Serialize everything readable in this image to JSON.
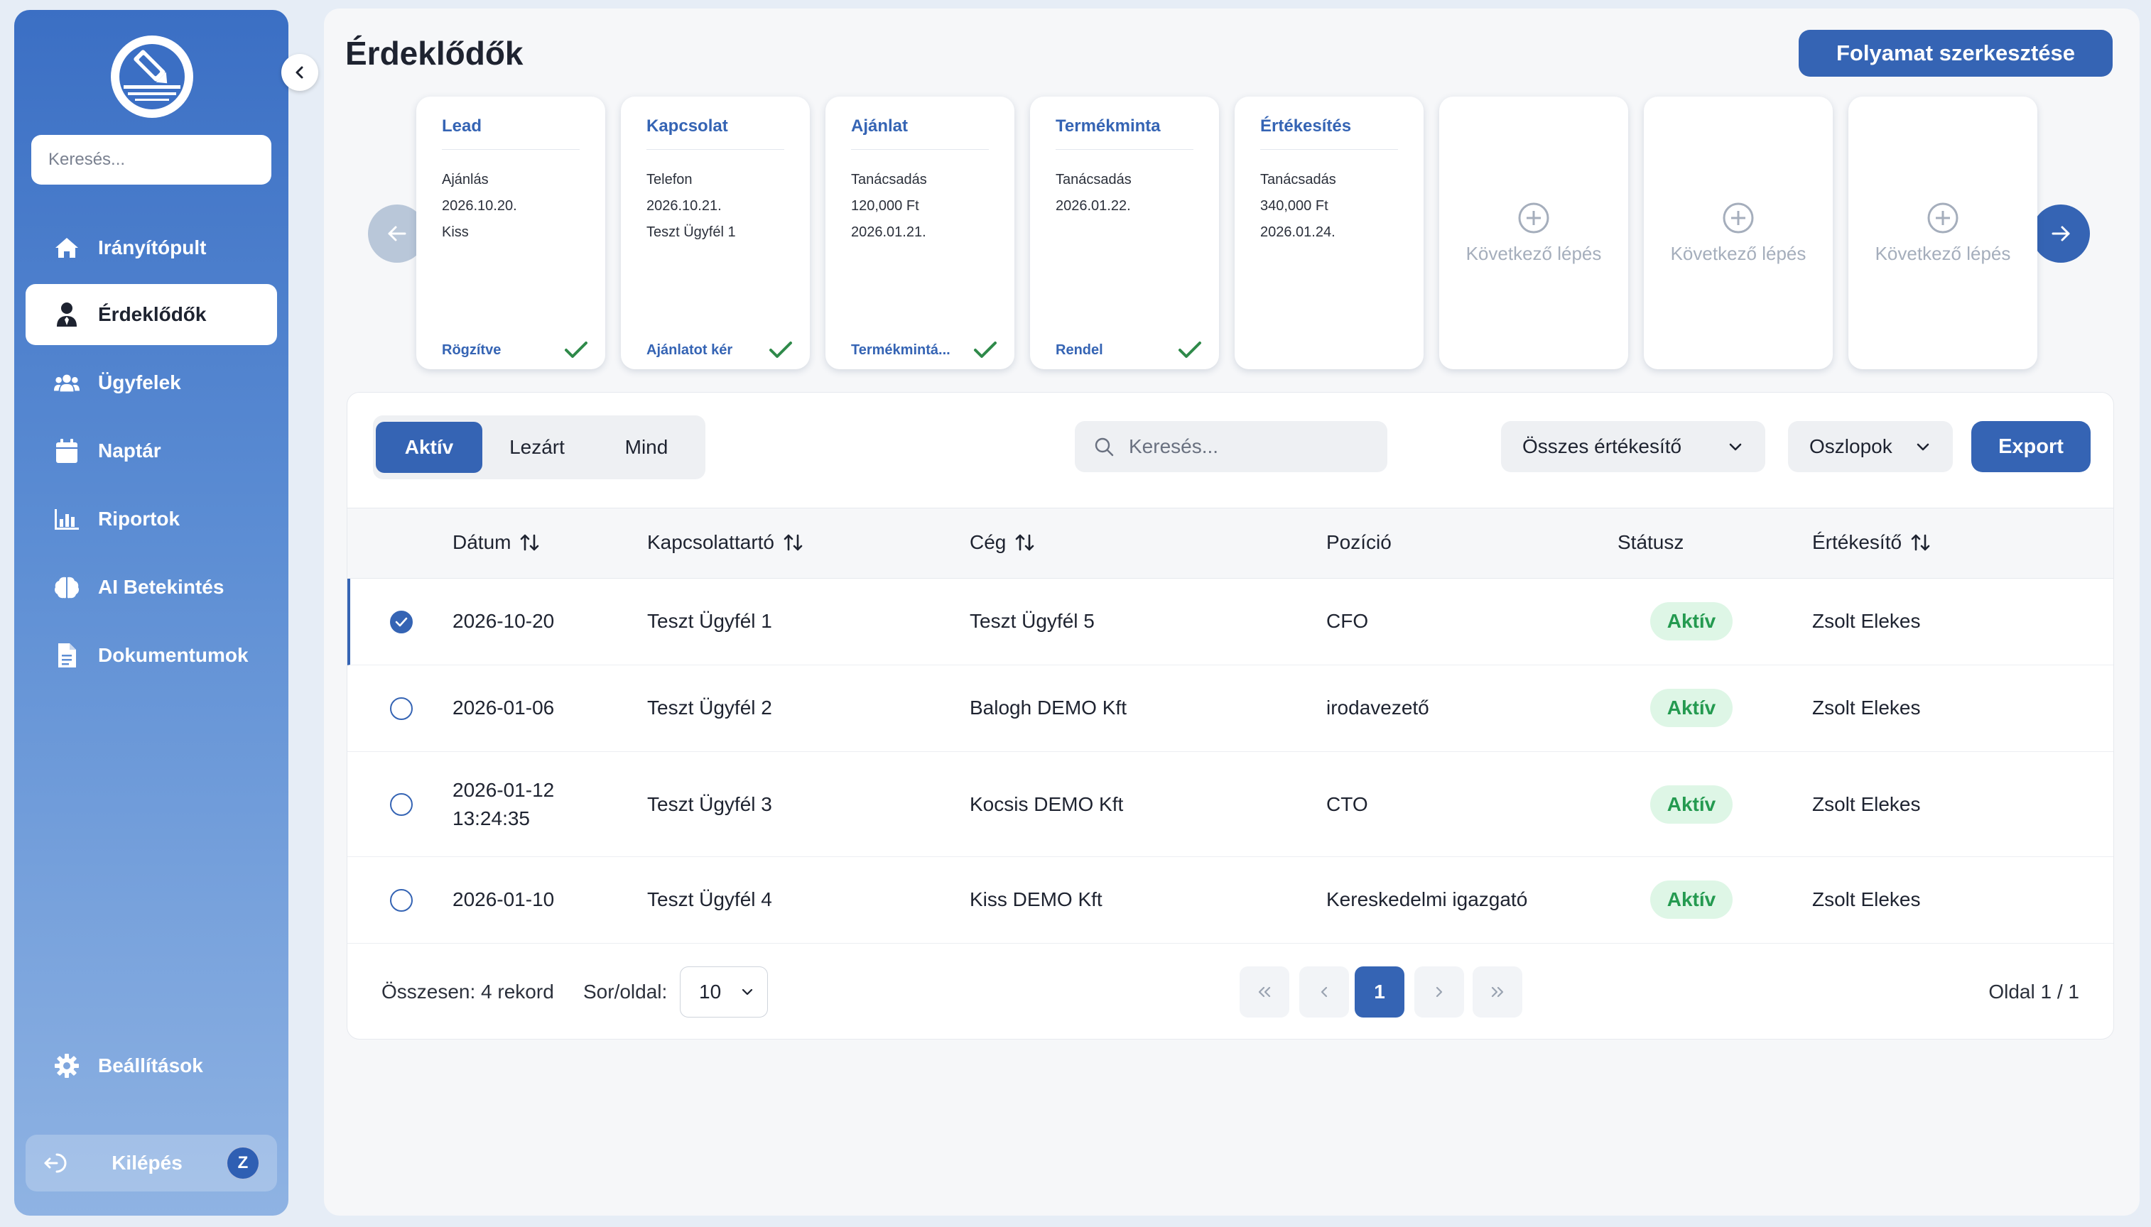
{
  "sidebar": {
    "search_placeholder": "Keresés...",
    "nav": [
      {
        "label": "Irányítópult",
        "icon": "home-icon",
        "active": false
      },
      {
        "label": "Érdeklődők",
        "icon": "user-tie-icon",
        "active": true
      },
      {
        "label": "Ügyfelek",
        "icon": "users-icon",
        "active": false
      },
      {
        "label": "Naptár",
        "icon": "calendar-icon",
        "active": false
      },
      {
        "label": "Riportok",
        "icon": "chart-bar-icon",
        "active": false
      },
      {
        "label": "AI Betekintés",
        "icon": "brain-icon",
        "active": false
      },
      {
        "label": "Dokumentumok",
        "icon": "document-icon",
        "active": false
      }
    ],
    "settings_label": "Beállítások",
    "logout_label": "Kilépés",
    "avatar_initial": "Z"
  },
  "header": {
    "title": "Érdeklődők",
    "edit_flow_button": "Folyamat szerkesztése"
  },
  "pipeline": {
    "steps": [
      {
        "title": "Lead",
        "lines": [
          "Ajánlás",
          "2026.10.20.",
          "Kiss"
        ],
        "status": "Rögzítve",
        "done": true
      },
      {
        "title": "Kapcsolat",
        "lines": [
          "Telefon",
          "2026.10.21.",
          "Teszt Ügyfél 1"
        ],
        "status": "Ajánlatot kér",
        "done": true
      },
      {
        "title": "Ajánlat",
        "lines": [
          "Tanácsadás",
          "120,000 Ft",
          "2026.01.21."
        ],
        "status": "Termékmintá...",
        "done": true
      },
      {
        "title": "Termékminta",
        "lines": [
          "Tanácsadás",
          "2026.01.22."
        ],
        "status": "Rendel",
        "done": true
      },
      {
        "title": "Értékesítés",
        "lines": [
          "Tanácsadás",
          "340,000 Ft",
          "2026.01.24."
        ],
        "status": "",
        "done": false
      }
    ],
    "placeholders": [
      "Következő lépés",
      "Következő lépés",
      "Következő lépés"
    ]
  },
  "table": {
    "tabs": [
      "Aktív",
      "Lezárt",
      "Mind"
    ],
    "active_tab": "Aktív",
    "search_placeholder": "Keresés...",
    "salesperson_filter": "Összes értékesítő",
    "columns_button": "Oszlopok",
    "export_button": "Export",
    "headers": {
      "date": "Dátum",
      "contact": "Kapcsolattartó",
      "company": "Cég",
      "position": "Pozíció",
      "status": "Státusz",
      "salesperson": "Értékesítő"
    },
    "rows": [
      {
        "date": "2026-10-20",
        "time": "",
        "contact": "Teszt Ügyfél 1",
        "company": "Teszt Ügyfél 5",
        "position": "CFO",
        "status": "Aktív",
        "salesperson": "Zsolt Elekes",
        "selected": true
      },
      {
        "date": "2026-01-06",
        "time": "",
        "contact": "Teszt Ügyfél 2",
        "company": "Balogh DEMO Kft",
        "position": "irodavezető",
        "status": "Aktív",
        "salesperson": "Zsolt Elekes",
        "selected": false
      },
      {
        "date": "2026-01-12",
        "time": "13:24:35",
        "contact": "Teszt Ügyfél 3",
        "company": "Kocsis DEMO Kft",
        "position": "CTO",
        "status": "Aktív",
        "salesperson": "Zsolt Elekes",
        "selected": false
      },
      {
        "date": "2026-01-10",
        "time": "",
        "contact": "Teszt Ügyfél 4",
        "company": "Kiss DEMO Kft",
        "position": "Kereskedelmi igazgató",
        "status": "Aktív",
        "salesperson": "Zsolt Elekes",
        "selected": false
      }
    ],
    "footer": {
      "total": "Összesen: 4 rekord",
      "rows_per_page_label": "Sor/oldal:",
      "rows_per_page": "10",
      "current_page": "1",
      "page_info": "Oldal 1 / 1"
    }
  },
  "colors": {
    "accent": "#3564b4",
    "status_green": "#249a50",
    "status_green_bg": "#def6e6"
  }
}
